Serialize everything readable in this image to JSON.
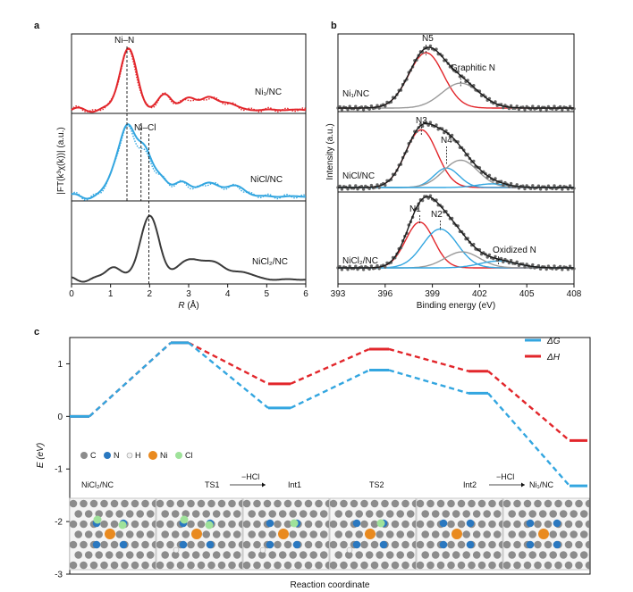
{
  "panels": {
    "a": "a",
    "b": "b",
    "c": "c"
  },
  "colors": {
    "red": "#e2262b",
    "blue": "#33a6e0",
    "dark": "#3b3b3b",
    "grey": "#9a9a9a",
    "orange": "#e98a1f",
    "green": "#9fe29a",
    "nblue": "#2a78c0"
  },
  "chart_data": [
    {
      "id": "a",
      "type": "line",
      "xlabel_prefix": "R",
      "xlabel_unit": " (Å)",
      "ylabel": "|FT(k³χ(k))| (a.u.)",
      "xlim": [
        0,
        6
      ],
      "xticks": [
        "0",
        "1",
        "2",
        "3",
        "4",
        "5",
        "6"
      ],
      "samples": [
        "Ni₁/NC",
        "NiCl/NC",
        "NiCl₂/NC"
      ],
      "peak_labels": [
        "Ni–N",
        "Ni–Cl"
      ],
      "series": [
        {
          "name": "Ni₁/NC",
          "peaks": [
            [
              1.45,
              1.0,
              0.22
            ],
            [
              2.4,
              0.25,
              0.18
            ],
            [
              3.0,
              0.18,
              0.2
            ],
            [
              3.5,
              0.2,
              0.2
            ],
            [
              4.0,
              0.12,
              0.2
            ]
          ]
        },
        {
          "name": "NiCl/NC",
          "peaks": [
            [
              1.15,
              0.45,
              0.2
            ],
            [
              1.45,
              0.85,
              0.18
            ],
            [
              1.85,
              0.75,
              0.2
            ],
            [
              2.3,
              0.25,
              0.18
            ],
            [
              2.8,
              0.2,
              0.22
            ],
            [
              3.5,
              0.2,
              0.3
            ],
            [
              4.2,
              0.15,
              0.25
            ]
          ]
        },
        {
          "name": "NiCl₂/NC",
          "peaks": [
            [
              1.05,
              0.22,
              0.18
            ],
            [
              2.0,
              1.0,
              0.25
            ],
            [
              3.05,
              0.33,
              0.3
            ],
            [
              3.7,
              0.25,
              0.25
            ],
            [
              4.4,
              0.12,
              0.25
            ]
          ]
        }
      ],
      "ref_lines_R": [
        1.42,
        1.78,
        1.98
      ]
    },
    {
      "id": "b",
      "type": "line",
      "xlabel": "Binding energy (eV)",
      "ylabel": "Intensity (a.u.)",
      "xlim": [
        393,
        408
      ],
      "xticks": [
        "393",
        "396",
        "399",
        "402",
        "405",
        "408"
      ],
      "samples": [
        "Ni₁/NC",
        "NiCl/NC",
        "NiCl₂/NC"
      ],
      "panels": [
        {
          "sample": "Ni₁/NC",
          "components": [
            {
              "name": "N5",
              "center": 398.6,
              "height": 1.0,
              "width": 1.1,
              "color": "red"
            },
            {
              "name": "Graphitic N",
              "center": 400.8,
              "height": 0.45,
              "width": 1.2,
              "color": "grey"
            }
          ]
        },
        {
          "sample": "NiCl/NC",
          "components": [
            {
              "name": "N3",
              "center": 398.3,
              "height": 0.95,
              "width": 1.0,
              "color": "red"
            },
            {
              "name": "N4",
              "center": 399.9,
              "height": 0.32,
              "width": 0.8,
              "color": "blue"
            },
            {
              "name": "",
              "center": 400.8,
              "height": 0.45,
              "width": 1.1,
              "color": "grey"
            },
            {
              "name": "",
              "center": 402.8,
              "height": 0.06,
              "width": 1.0,
              "color": "blue"
            }
          ]
        },
        {
          "sample": "NiCl₂/NC",
          "components": [
            {
              "name": "N1",
              "center": 398.2,
              "height": 0.8,
              "width": 0.9,
              "color": "red"
            },
            {
              "name": "N2",
              "center": 399.5,
              "height": 0.68,
              "width": 1.1,
              "color": "blue"
            },
            {
              "name": "",
              "center": 400.9,
              "height": 0.28,
              "width": 1.1,
              "color": "grey"
            },
            {
              "name": "Oxidized N",
              "center": 403.2,
              "height": 0.12,
              "width": 1.2,
              "color": "blue"
            }
          ]
        }
      ]
    },
    {
      "id": "c",
      "type": "line",
      "xlabel": "Reaction coordinate",
      "ylabel": "E (eV)",
      "ylim": [
        -3,
        1.5
      ],
      "yticks": [
        1,
        0,
        -1,
        -2,
        -3
      ],
      "legend": [
        "ΔG",
        "ΔH"
      ],
      "states": [
        "NiCl₂/NC",
        "TS1",
        "Int1",
        "TS2",
        "Int2",
        "Ni₁/NC"
      ],
      "series": [
        {
          "name": "ΔG",
          "values": [
            0,
            1.4,
            0.16,
            0.88,
            0.44,
            -1.32
          ]
        },
        {
          "name": "ΔH",
          "values": [
            0,
            1.4,
            0.62,
            1.28,
            0.86,
            -0.46
          ]
        }
      ],
      "step_label": "−HCl",
      "atom_legend": [
        "C",
        "N",
        "H",
        "Ni",
        "Cl"
      ]
    }
  ]
}
